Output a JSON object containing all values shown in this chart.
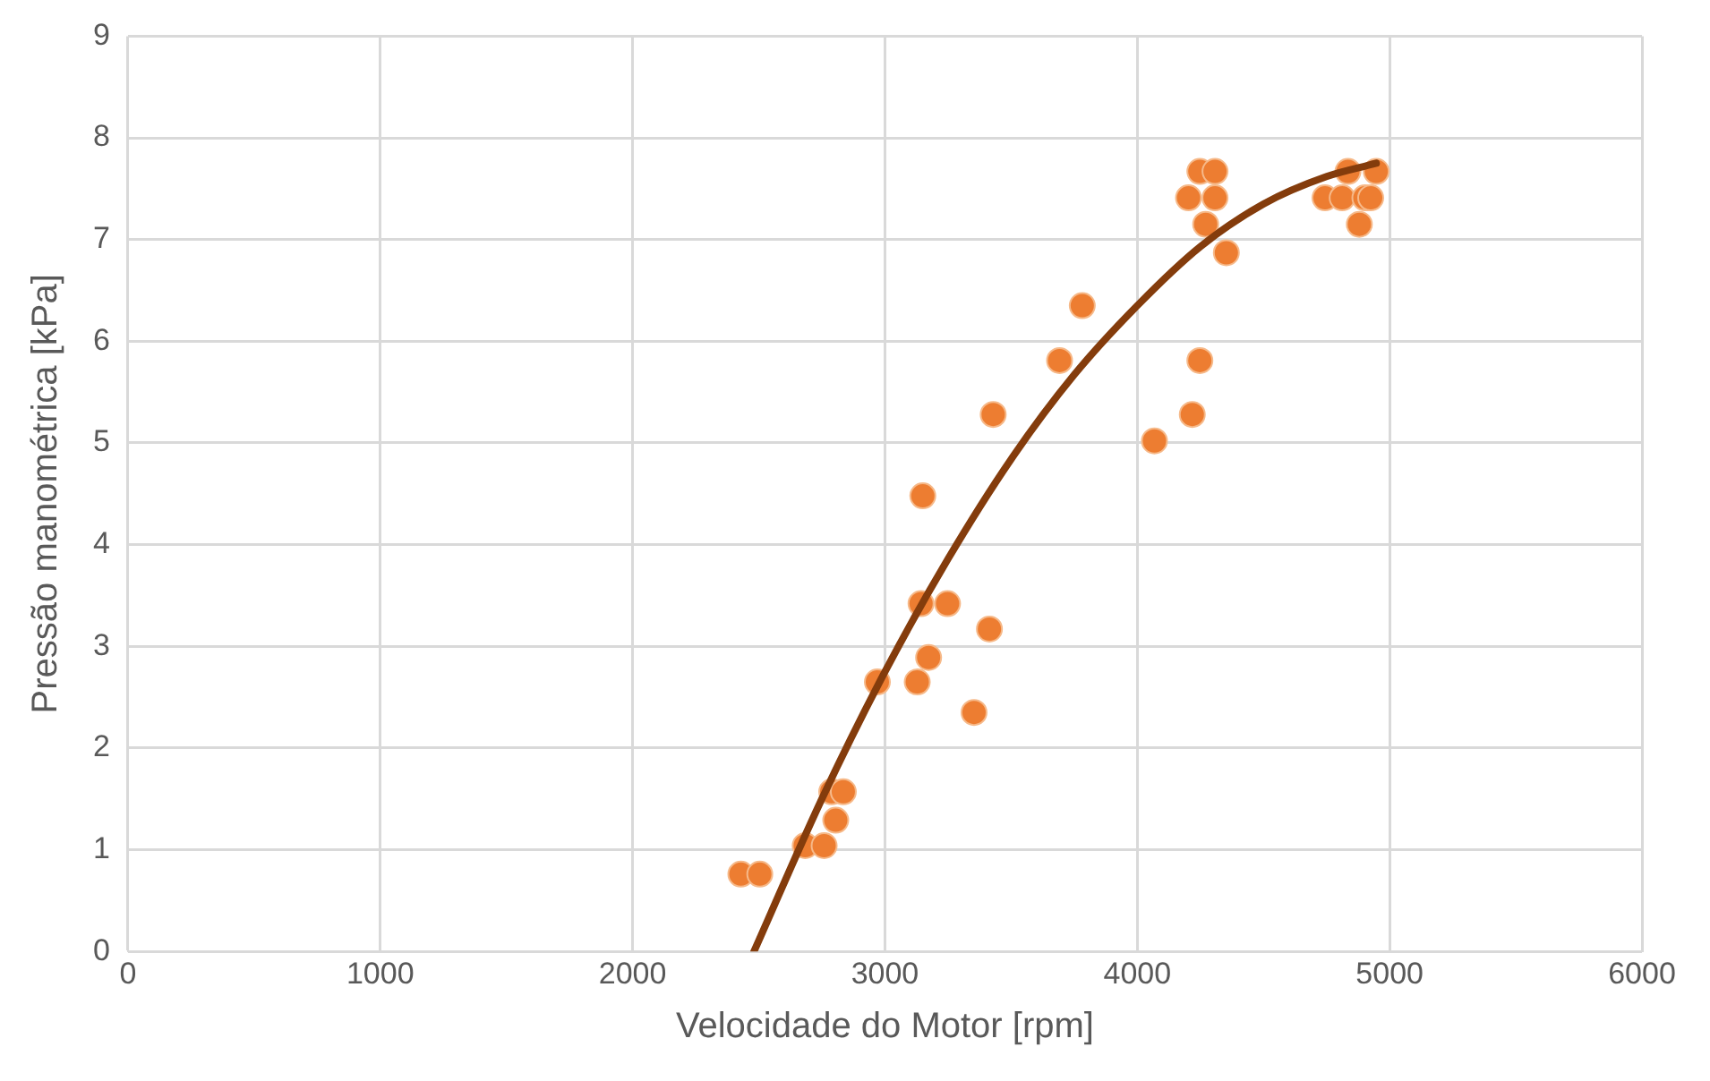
{
  "chart_data": {
    "type": "scatter",
    "xlabel": "Velocidade do Motor [rpm]",
    "ylabel": "Pressão manométrica [kPa]",
    "xlim": [
      0,
      6000
    ],
    "xticks": [
      0,
      1000,
      2000,
      3000,
      4000,
      5000,
      6000
    ],
    "ylim": [
      0,
      9
    ],
    "yticks": [
      0,
      1,
      2,
      3,
      4,
      5,
      6,
      7,
      8,
      9
    ],
    "grid": true,
    "legend": false,
    "marker": "circle",
    "series": [
      {
        "color": "#ed7d31",
        "x": [
          2429,
          2504,
          2684,
          2759,
          2805,
          2789,
          2835,
          2970,
          3128,
          3173,
          3143,
          3248,
          3353,
          3414,
          3150,
          3429,
          3692,
          3782,
          4068,
          4218,
          4248,
          4203,
          4271,
          4248,
          4308,
          4353,
          4308,
          4744,
          4812,
          4880,
          4902,
          4925,
          4835,
          4947
        ],
        "values": [
          0.76,
          0.76,
          1.04,
          1.04,
          1.29,
          1.57,
          1.57,
          2.65,
          2.65,
          2.89,
          3.42,
          3.42,
          2.35,
          3.17,
          4.48,
          5.28,
          5.81,
          6.35,
          5.02,
          5.28,
          5.81,
          7.41,
          7.15,
          7.67,
          7.41,
          6.87,
          7.67,
          7.41,
          7.41,
          7.15,
          7.41,
          7.41,
          7.67,
          7.67
        ]
      },
      {
        "type": "line",
        "color": "#843c0c",
        "marker": "none",
        "x": [
          2481,
          2750,
          3000,
          3250,
          3500,
          3750,
          4000,
          4250,
          4500,
          4750,
          4947
        ],
        "values": [
          0,
          1.5,
          2.75,
          3.86,
          4.84,
          5.67,
          6.35,
          6.93,
          7.35,
          7.62,
          7.75
        ]
      }
    ]
  }
}
